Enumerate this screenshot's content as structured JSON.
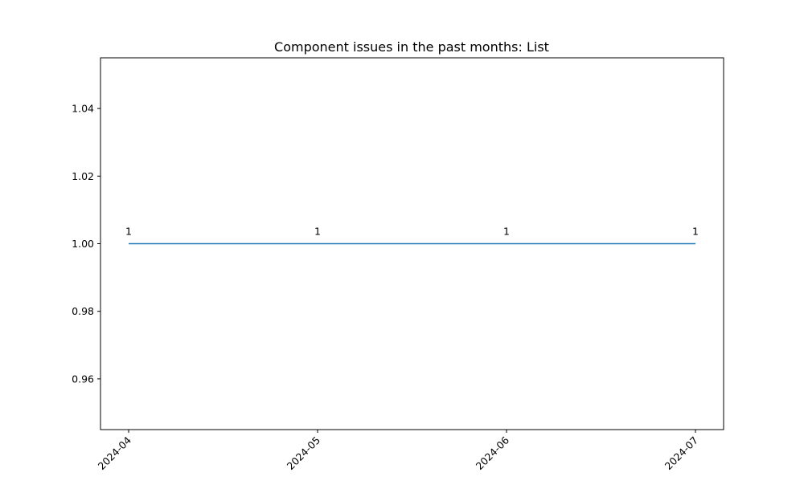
{
  "chart_data": {
    "type": "line",
    "title": "Component issues in the past months: List",
    "xlabel": "",
    "ylabel": "",
    "x": [
      "2024-04",
      "2024-05",
      "2024-06",
      "2024-07"
    ],
    "x_tick_labels": [
      "2024-04",
      "2024-05",
      "2024-06",
      "2024-07"
    ],
    "series": [
      {
        "values": [
          1,
          1,
          1,
          1
        ],
        "data_labels": [
          "1",
          "1",
          "1",
          "1"
        ],
        "color": "#1f77b4"
      }
    ],
    "ylim": [
      0.945,
      1.055
    ],
    "y_ticks": [
      0.96,
      0.98,
      1.0,
      1.02,
      1.04
    ],
    "y_tick_labels": [
      "0.96",
      "0.98",
      "1.00",
      "1.02",
      "1.04"
    ],
    "x_tick_rotation_deg": 45,
    "grid": false,
    "legend": "none"
  }
}
